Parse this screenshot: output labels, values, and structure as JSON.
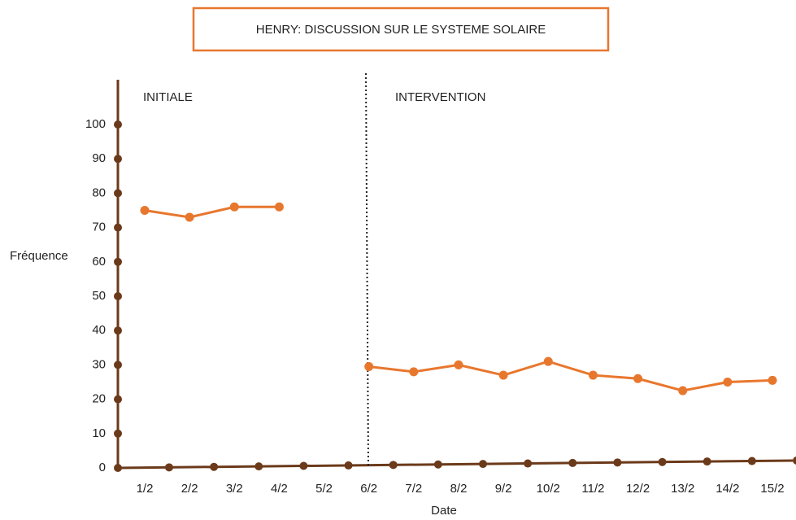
{
  "chart_data": {
    "type": "line",
    "title": "HENRY: DISCUSSION SUR LE SYSTEME SOLAIRE",
    "y_label": "Fréquence",
    "x_label": "Date",
    "annotations": [
      "INITIALE",
      "INTERVENTION"
    ],
    "categories": [
      "1/2",
      "2/2",
      "3/2",
      "4/2",
      "5/2",
      "6/2",
      "7/2",
      "8/2",
      "9/2",
      "10/2",
      "11/2",
      "12/2",
      "13/2",
      "14/2",
      "15/2"
    ],
    "series": [
      {
        "name": "Fréquence",
        "color": "#e8772e",
        "values": [
          75,
          73,
          76,
          76,
          null,
          29.5,
          28,
          30,
          27,
          31,
          27,
          26,
          22.5,
          25,
          25.5
        ]
      }
    ],
    "ylim": [
      0,
      100
    ],
    "yticks": [
      0,
      10,
      20,
      30,
      40,
      50,
      60,
      70,
      80,
      90,
      100
    ]
  }
}
